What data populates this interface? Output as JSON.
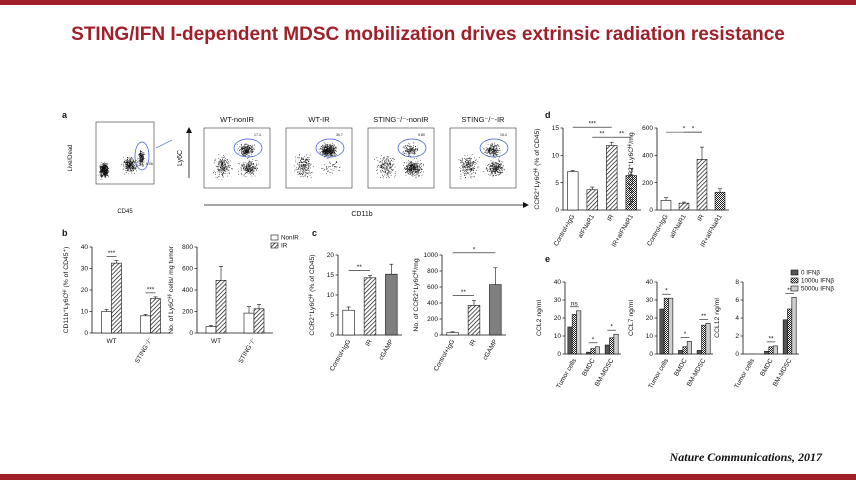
{
  "slide": {
    "title": "STING/IFN I-dependent MDSC mobilization drives extrinsic radiation resistance",
    "citation": "Nature Communications, 2017"
  },
  "colors": {
    "accent": "#a0202a",
    "bar_white": "#ffffff",
    "bar_gray": "#808080",
    "bar_dark": "#555555"
  },
  "panels": {
    "a": {
      "letter": "a",
      "gate_plot": {
        "ylabel": "Live/Dead",
        "xlabel": "CD45",
        "gate_value": "6.06"
      },
      "flow_ylabel": "Ly6C",
      "flow_xlabel": "CD11b",
      "flow_plots": [
        {
          "label": "WT-nonIR",
          "gate_value": "17.4"
        },
        {
          "label": "WT-IR",
          "gate_value": "30.7"
        },
        {
          "label": "STING⁻/⁻-nonIR",
          "gate_value": "9.80"
        },
        {
          "label": "STING⁻/⁻-IR",
          "gate_value": "15.4"
        }
      ]
    },
    "b": {
      "letter": "b"
    },
    "c": {
      "letter": "c"
    },
    "d": {
      "letter": "d"
    },
    "e": {
      "letter": "e"
    }
  },
  "chart_data": [
    {
      "type": "bar",
      "panel": "b1",
      "categories": [
        "WT",
        "STING⁻/⁻"
      ],
      "series": [
        {
          "name": "NonIR",
          "values": [
            10,
            8
          ]
        },
        {
          "name": "IR",
          "values": [
            32.5,
            16
          ]
        }
      ],
      "errors": [
        [
          1,
          0.7
        ],
        [
          1.2,
          0.8
        ]
      ],
      "ylabel": "CD11b⁺Ly6Cᴴⁱ (% of CD45⁺)",
      "ylim": [
        0,
        40
      ],
      "yticks": [
        "0",
        "10",
        "20",
        "30",
        "40"
      ],
      "significance": [
        "***",
        "***"
      ]
    },
    {
      "type": "bar",
      "panel": "b2",
      "categories": [
        "WT",
        "STING⁻/⁻"
      ],
      "series": [
        {
          "name": "NonIR",
          "values": [
            60,
            185
          ]
        },
        {
          "name": "IR",
          "values": [
            490,
            225
          ]
        }
      ],
      "errors": [
        [
          10,
          60
        ],
        [
          130,
          40
        ]
      ],
      "ylabel": "No. of Ly6Cᴴⁱ cells/ mg tumor",
      "ylim": [
        0,
        800
      ],
      "yticks": [
        "0",
        "200",
        "400",
        "600",
        "800"
      ],
      "legend": [
        "NonIR",
        "IR"
      ]
    },
    {
      "type": "bar",
      "panel": "c1",
      "categories": [
        "Control+IgG",
        "IR",
        "cGAMP"
      ],
      "values": [
        6.2,
        14.3,
        15.2
      ],
      "errors": [
        0.8,
        0.6,
        2.5
      ],
      "ylabel": "CCR2⁺Ly6Cᴴⁱ (% of CD45)",
      "ylim": [
        0,
        20
      ],
      "yticks": [
        "0",
        "5",
        "10",
        "15",
        "20"
      ],
      "significance": [
        "**"
      ]
    },
    {
      "type": "bar",
      "panel": "c2",
      "categories": [
        "Control+IgG",
        "IR",
        "cGAMP"
      ],
      "values": [
        30,
        370,
        630
      ],
      "errors": [
        10,
        60,
        210
      ],
      "ylabel": "No. of CCR2⁺Ly6Cᴴⁱ/mg",
      "ylim": [
        0,
        1000
      ],
      "yticks": [
        "0",
        "200",
        "400",
        "600",
        "800",
        "1000"
      ],
      "significance": [
        "**",
        "*"
      ]
    },
    {
      "type": "bar",
      "panel": "d1",
      "categories": [
        "Control+IgG",
        "aIFNaR1",
        "IR",
        "IR+aIFNaR1"
      ],
      "values": [
        7,
        3.7,
        11.8,
        6.3
      ],
      "errors": [
        0.2,
        0.5,
        0.6,
        1.3
      ],
      "ylabel": "CCR2⁺Ly6Cᴴⁱ (% of CD45)",
      "ylim": [
        0,
        15
      ],
      "yticks": [
        "0",
        "5",
        "10",
        "15"
      ],
      "significance": [
        "***",
        "**",
        "**"
      ]
    },
    {
      "type": "bar",
      "panel": "d2",
      "categories": [
        "Control+IgG",
        "aIFNaR1",
        "IR",
        "IR+aIFNaR1"
      ],
      "values": [
        70,
        50,
        370,
        130
      ],
      "errors": [
        20,
        8,
        90,
        25
      ],
      "ylabel": "No. of CCR2⁺Ly6Cᴴⁱ/mg",
      "ylim": [
        0,
        600
      ],
      "yticks": [
        "0",
        "200",
        "400",
        "600"
      ],
      "significance": [
        "*",
        "*"
      ]
    },
    {
      "type": "bar",
      "panel": "e1",
      "categories": [
        "Tumor cells",
        "BMDC",
        "BM-MDSC"
      ],
      "series": [
        {
          "name": "0 IFNβ",
          "values": [
            15,
            1,
            5
          ]
        },
        {
          "name": "1000u IFNβ",
          "values": [
            22,
            3,
            9
          ]
        },
        {
          "name": "5000u IFNβ",
          "values": [
            24,
            4,
            11
          ]
        }
      ],
      "ylabel": "CCL2 ng/ml",
      "ylim": [
        0,
        40
      ],
      "yticks": [
        "0",
        "10",
        "20",
        "30",
        "40"
      ],
      "significance": [
        "ns",
        "*",
        "*"
      ]
    },
    {
      "type": "bar",
      "panel": "e2",
      "categories": [
        "Tumor cells",
        "BMDC",
        "BM-MDSC"
      ],
      "series": [
        {
          "name": "0 IFNβ",
          "values": [
            25,
            2,
            2
          ]
        },
        {
          "name": "1000u IFNβ",
          "values": [
            31,
            4,
            16
          ]
        },
        {
          "name": "5000u IFNβ",
          "values": [
            31,
            7,
            17
          ]
        }
      ],
      "ylabel": "CCL7 ng/ml",
      "ylim": [
        0,
        40
      ],
      "yticks": [
        "0",
        "10",
        "20",
        "30",
        "40"
      ],
      "significance": [
        "*",
        "*",
        "**"
      ]
    },
    {
      "type": "bar",
      "panel": "e3",
      "categories": [
        "Tumor cells",
        "BMDC",
        "BM-MDSC"
      ],
      "series": [
        {
          "name": "0 IFNβ",
          "values": [
            0,
            0.3,
            3.8
          ]
        },
        {
          "name": "1000u IFNβ",
          "values": [
            0,
            0.8,
            5
          ]
        },
        {
          "name": "5000u IFNβ",
          "values": [
            0,
            0.9,
            6.3
          ]
        }
      ],
      "ylabel": "CCL12 ng/ml",
      "ylim": [
        0,
        8
      ],
      "yticks": [
        "0",
        "2",
        "4",
        "6",
        "8"
      ],
      "significance": [
        "**",
        "**"
      ],
      "legend": [
        "0 IFNβ",
        "1000u IFNβ",
        "5000u IFNβ"
      ]
    }
  ]
}
